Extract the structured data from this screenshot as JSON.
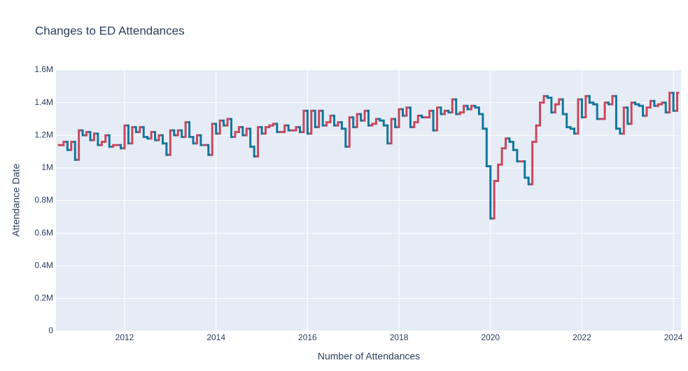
{
  "chart_data": {
    "type": "ohlc-step",
    "title": "Changes to ED Attendances",
    "x_label": "Number of Attendances",
    "y_label": "Attendance Date",
    "increasing_color": "#c8475d",
    "decreasing_color": "#12769c",
    "grid": true,
    "xlim": [
      "2010-07",
      "2024-03"
    ],
    "xticks": [
      2012,
      2014,
      2016,
      2018,
      2020,
      2022,
      2024
    ],
    "ylim": [
      0,
      1600000
    ],
    "yticks": [
      0,
      {
        "value": 200000,
        "label": "0.2M"
      },
      {
        "value": 400000,
        "label": "0.4M"
      },
      {
        "value": 600000,
        "label": "0.6M"
      },
      {
        "value": 800000,
        "label": "0.8M"
      },
      {
        "value": 1000000,
        "label": "1M"
      },
      {
        "value": 1200000,
        "label": "1.2M"
      },
      {
        "value": 1400000,
        "label": "1.4M"
      },
      {
        "value": 1600000,
        "label": "1.6M"
      }
    ],
    "x": [
      "2010-08",
      "2010-09",
      "2010-10",
      "2010-11",
      "2010-12",
      "2011-01",
      "2011-02",
      "2011-03",
      "2011-04",
      "2011-05",
      "2011-06",
      "2011-07",
      "2011-08",
      "2011-09",
      "2011-10",
      "2011-11",
      "2011-12",
      "2012-01",
      "2012-02",
      "2012-03",
      "2012-04",
      "2012-05",
      "2012-06",
      "2012-07",
      "2012-08",
      "2012-09",
      "2012-10",
      "2012-11",
      "2012-12",
      "2013-01",
      "2013-02",
      "2013-03",
      "2013-04",
      "2013-05",
      "2013-06",
      "2013-07",
      "2013-08",
      "2013-09",
      "2013-10",
      "2013-11",
      "2013-12",
      "2014-01",
      "2014-02",
      "2014-03",
      "2014-04",
      "2014-05",
      "2014-06",
      "2014-07",
      "2014-08",
      "2014-09",
      "2014-10",
      "2014-11",
      "2014-12",
      "2015-01",
      "2015-02",
      "2015-03",
      "2015-04",
      "2015-05",
      "2015-06",
      "2015-07",
      "2015-08",
      "2015-09",
      "2015-10",
      "2015-11",
      "2015-12",
      "2016-01",
      "2016-02",
      "2016-03",
      "2016-04",
      "2016-05",
      "2016-06",
      "2016-07",
      "2016-08",
      "2016-09",
      "2016-10",
      "2016-11",
      "2016-12",
      "2017-01",
      "2017-02",
      "2017-03",
      "2017-04",
      "2017-05",
      "2017-06",
      "2017-07",
      "2017-08",
      "2017-09",
      "2017-10",
      "2017-11",
      "2017-12",
      "2018-01",
      "2018-02",
      "2018-03",
      "2018-04",
      "2018-05",
      "2018-06",
      "2018-07",
      "2018-08",
      "2018-09",
      "2018-10",
      "2018-11",
      "2018-12",
      "2019-01",
      "2019-02",
      "2019-03",
      "2019-04",
      "2019-05",
      "2019-06",
      "2019-07",
      "2019-08",
      "2019-09",
      "2019-10",
      "2019-11",
      "2019-12",
      "2020-01",
      "2020-02",
      "2020-03",
      "2020-04",
      "2020-05",
      "2020-06",
      "2020-07",
      "2020-08",
      "2020-09",
      "2020-10",
      "2020-11",
      "2020-12",
      "2021-01",
      "2021-02",
      "2021-03",
      "2021-04",
      "2021-05",
      "2021-06",
      "2021-07",
      "2021-08",
      "2021-09",
      "2021-10",
      "2021-11",
      "2021-12",
      "2022-01",
      "2022-02",
      "2022-03",
      "2022-04",
      "2022-05",
      "2022-06",
      "2022-07",
      "2022-08",
      "2022-09",
      "2022-10",
      "2022-11",
      "2022-12",
      "2023-01",
      "2023-02",
      "2023-03",
      "2023-04",
      "2023-05",
      "2023-06",
      "2023-07",
      "2023-08",
      "2023-09",
      "2023-10",
      "2023-11",
      "2023-12",
      "2024-01",
      "2024-02"
    ],
    "values": [
      1140000,
      1160000,
      1110000,
      1160000,
      1050000,
      1230000,
      1200000,
      1220000,
      1170000,
      1210000,
      1140000,
      1160000,
      1200000,
      1130000,
      1140000,
      1140000,
      1120000,
      1260000,
      1150000,
      1250000,
      1220000,
      1250000,
      1190000,
      1180000,
      1220000,
      1170000,
      1200000,
      1150000,
      1080000,
      1230000,
      1200000,
      1230000,
      1190000,
      1280000,
      1190000,
      1150000,
      1200000,
      1140000,
      1140000,
      1080000,
      1270000,
      1210000,
      1290000,
      1260000,
      1300000,
      1190000,
      1220000,
      1250000,
      1200000,
      1240000,
      1130000,
      1070000,
      1250000,
      1210000,
      1250000,
      1260000,
      1270000,
      1220000,
      1220000,
      1260000,
      1230000,
      1230000,
      1250000,
      1220000,
      1350000,
      1210000,
      1350000,
      1250000,
      1350000,
      1260000,
      1280000,
      1320000,
      1260000,
      1280000,
      1240000,
      1130000,
      1310000,
      1250000,
      1330000,
      1290000,
      1350000,
      1260000,
      1270000,
      1300000,
      1290000,
      1260000,
      1150000,
      1300000,
      1250000,
      1360000,
      1320000,
      1370000,
      1250000,
      1280000,
      1320000,
      1310000,
      1310000,
      1350000,
      1230000,
      1370000,
      1330000,
      1350000,
      1340000,
      1420000,
      1330000,
      1340000,
      1380000,
      1360000,
      1380000,
      1370000,
      1330000,
      1240000,
      1010000,
      690000,
      920000,
      1020000,
      1120000,
      1180000,
      1160000,
      1110000,
      1040000,
      1040000,
      940000,
      900000,
      1160000,
      1260000,
      1400000,
      1440000,
      1430000,
      1340000,
      1390000,
      1420000,
      1330000,
      1250000,
      1240000,
      1210000,
      1420000,
      1310000,
      1440000,
      1400000,
      1390000,
      1300000,
      1300000,
      1400000,
      1390000,
      1440000,
      1240000,
      1210000,
      1370000,
      1270000,
      1400000,
      1390000,
      1380000,
      1320000,
      1370000,
      1410000,
      1380000,
      1390000,
      1400000,
      1340000,
      1460000,
      1350000,
      1460000
    ]
  }
}
